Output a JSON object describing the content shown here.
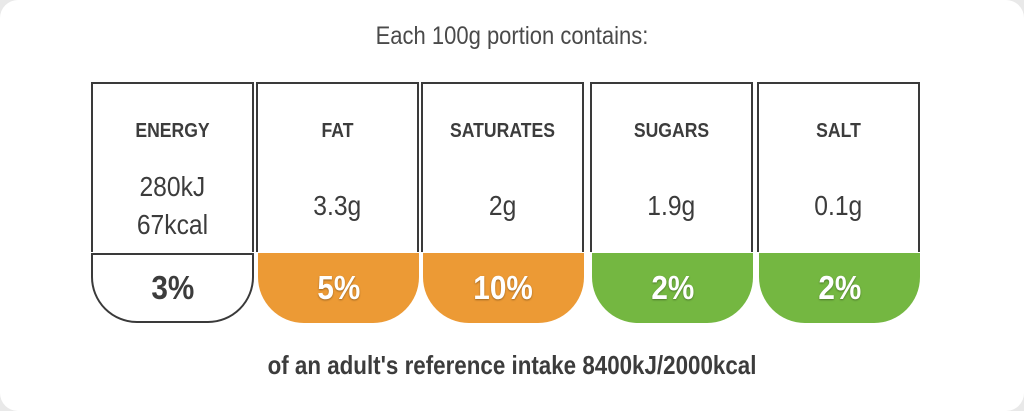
{
  "heading": "Each 100g portion contains:",
  "nutrients": [
    {
      "label": "ENERGY",
      "value_lines": [
        "280kJ",
        "67kcal"
      ],
      "percent": "3%",
      "color": "#ffffff"
    },
    {
      "label": "FAT",
      "value_lines": [
        "3.3g"
      ],
      "percent": "5%",
      "color": "#ec9a35"
    },
    {
      "label": "SATURATES",
      "value_lines": [
        "2g"
      ],
      "percent": "10%",
      "color": "#ec9a35"
    },
    {
      "label": "SUGARS",
      "value_lines": [
        "1.9g"
      ],
      "percent": "2%",
      "color": "#74b741"
    },
    {
      "label": "SALT",
      "value_lines": [
        "0.1g"
      ],
      "percent": "2%",
      "color": "#74b741"
    }
  ],
  "footer": "of an adult's reference intake 8400kJ/2000kcal"
}
